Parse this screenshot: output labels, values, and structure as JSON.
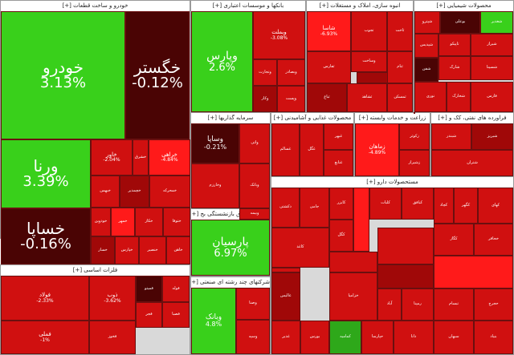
{
  "colors": {
    "bright_green": "#39d01b",
    "green": "#2ea81a",
    "dark_green": "#1e7a12",
    "bright_red": "#ff1a1a",
    "red": "#d01010",
    "dark_red": "#a00808",
    "maroon": "#4a0404",
    "neutral": "#7a1010"
  },
  "sectors": [
    {
      "id": "auto",
      "title": "خودرو و ساخت قطعات [+]"
    },
    {
      "id": "banks",
      "title": "بانکها و موسسات اعتباری [+]"
    },
    {
      "id": "telecom",
      "title": "انبوه سازی، املاک و مستغلات [+]"
    },
    {
      "id": "chem",
      "title": "محصولات شیمیایی [+]"
    },
    {
      "id": "invest",
      "title": "سرمایه گذاریها [+]"
    },
    {
      "id": "food",
      "title": "محصولات غذایی و آشامیدنی [+]"
    },
    {
      "id": "agri",
      "title": "زراعت و خدمات وابسته [+]"
    },
    {
      "id": "refinery",
      "title": "فراورده های نفتی، کک و [+]"
    },
    {
      "id": "multi",
      "title": "سیمه وصندوق بازنشستگی بج [+]"
    },
    {
      "id": "metal",
      "title": "فلزات اساسی [+]"
    },
    {
      "id": "holding",
      "title": "شرکتهای چند رشته ای صنعتی [+]"
    },
    {
      "id": "pharma",
      "title": "مستحصولات دارو [+]"
    }
  ],
  "tiles": [
    {
      "id": "khodro",
      "name": "خودرو",
      "change": "3.13%",
      "color": "bright_green",
      "size": "xl"
    },
    {
      "id": "khgostar",
      "name": "خگستر",
      "change": "-0.12%",
      "color": "maroon",
      "size": "xl"
    },
    {
      "id": "varna",
      "name": "ورنا",
      "change": "3.39%",
      "color": "bright_green",
      "size": "xl"
    },
    {
      "id": "khsapa",
      "name": "خساپا",
      "change": "-0.16%",
      "color": "maroon",
      "size": "xl"
    },
    {
      "id": "khavar",
      "name": "خاور",
      "change": "-2.04%",
      "color": "red",
      "size": "sm"
    },
    {
      "id": "kharakhs",
      "name": "خراهی",
      "change": "-4.84%",
      "color": "bright_red",
      "size": "sm"
    },
    {
      "id": "khabahman",
      "name": "خبهمن",
      "change": "",
      "color": "red",
      "size": "xs"
    },
    {
      "id": "khchamdir",
      "name": "خچمدیر",
      "change": "",
      "color": "dark_red",
      "size": "xs"
    },
    {
      "id": "khmohreka",
      "name": "خمحرکه",
      "change": "",
      "color": "red",
      "size": "xs"
    },
    {
      "id": "khodvin",
      "name": "خودوین",
      "change": "",
      "color": "red",
      "size": "xs"
    },
    {
      "id": "khmehr",
      "name": "خمهر",
      "change": "",
      "color": "bright_red",
      "size": "xs"
    },
    {
      "id": "khkhaz",
      "name": "خکاز",
      "change": "",
      "color": "red",
      "size": "xs"
    },
    {
      "id": "khtoos",
      "name": "ختوقا",
      "change": "",
      "color": "red",
      "size": "xs"
    },
    {
      "id": "khsaz",
      "name": "خساز",
      "change": "",
      "color": "dark_red",
      "size": "xs"
    },
    {
      "id": "khpars",
      "name": "خپارس",
      "change": "",
      "color": "red",
      "size": "xs"
    },
    {
      "id": "khnamak",
      "name": "خنصیر",
      "change": "",
      "color": "red",
      "size": "xs"
    },
    {
      "id": "khthan",
      "name": "خاهن",
      "change": "",
      "color": "red",
      "size": "xs"
    },
    {
      "id": "khshaz",
      "name": "خشرق",
      "change": "",
      "color": "red",
      "size": "xs"
    },
    {
      "id": "khlent",
      "name": "خلنت",
      "change": "",
      "color": "red",
      "size": "xs"
    },
    {
      "id": "khzar",
      "name": "خزر",
      "change": "",
      "color": "red",
      "size": "xs"
    },
    {
      "id": "khgilan",
      "name": "خکلتوم",
      "change": "",
      "color": "red",
      "size": "xs"
    },
    {
      "id": "khamid",
      "name": "خاذین",
      "change": "",
      "color": "dark_red",
      "size": "xs"
    },
    {
      "id": "vpars",
      "name": "وپارس",
      "change": "2.6%",
      "color": "bright_green",
      "size": "lg"
    },
    {
      "id": "vmellat",
      "name": "وبملت",
      "change": "-3.08%",
      "color": "red",
      "size": "sm"
    },
    {
      "id": "vtejarat",
      "name": "وتجارت",
      "change": "",
      "color": "red",
      "size": "xs"
    },
    {
      "id": "vbsader",
      "name": "وبصادر",
      "change": "",
      "color": "red",
      "size": "xs"
    },
    {
      "id": "vkar",
      "name": "وکار",
      "change": "",
      "color": "dark_red",
      "size": "xs"
    },
    {
      "id": "vpost",
      "name": "وپست",
      "change": "",
      "color": "red",
      "size": "xs"
    },
    {
      "id": "vsina",
      "name": "وسینا",
      "change": "",
      "color": "maroon",
      "size": "xs"
    },
    {
      "id": "vday",
      "name": "ودی",
      "change": "",
      "color": "red",
      "size": "xs"
    },
    {
      "id": "vbmeli",
      "name": "وملل",
      "change": "",
      "color": "red",
      "size": "xs"
    },
    {
      "id": "shasta",
      "name": "شاسا",
      "change": "-6.93%",
      "color": "bright_red",
      "size": "sm"
    },
    {
      "id": "vsakht",
      "name": "وساخت",
      "change": "",
      "color": "red",
      "size": "xs"
    },
    {
      "id": "tjoub",
      "name": "تجوب",
      "change": "",
      "color": "red",
      "size": "xs"
    },
    {
      "id": "takth",
      "name": "ثاخت",
      "change": "",
      "color": "red",
      "size": "xs"
    },
    {
      "id": "tfars",
      "name": "ثفارس",
      "change": "",
      "color": "red",
      "size": "xs"
    },
    {
      "id": "thnaz",
      "name": "ثنام",
      "change": "",
      "color": "red",
      "size": "xs"
    },
    {
      "id": "tbaj",
      "name": "ثباغ",
      "change": "",
      "color": "dark_red",
      "size": "xs"
    },
    {
      "id": "tshahed",
      "name": "ثشاهد",
      "change": "",
      "color": "red",
      "size": "xs"
    },
    {
      "id": "tmasken",
      "name": "ثمسکن",
      "change": "",
      "color": "red",
      "size": "xs"
    },
    {
      "id": "shpet",
      "name": "شپترو",
      "change": "",
      "color": "red",
      "size": "xs"
    },
    {
      "id": "shbandar",
      "name": "بوعلی",
      "change": "",
      "color": "maroon",
      "size": "xs"
    },
    {
      "id": "shgh",
      "name": "شغدیر",
      "change": "3.66%",
      "color": "bright_green",
      "size": "xs"
    },
    {
      "id": "shpdis",
      "name": "شپدیس",
      "change": "",
      "color": "red",
      "size": "xs"
    },
    {
      "id": "tapico",
      "name": "تاپیکو",
      "change": "",
      "color": "red",
      "size": "xs"
    },
    {
      "id": "shiraz",
      "name": "شیراز",
      "change": "",
      "color": "red",
      "size": "xs"
    },
    {
      "id": "shfan",
      "name": "شفن",
      "change": "",
      "color": "maroon",
      "size": "xs"
    },
    {
      "id": "khark",
      "name": "شارک",
      "change": "",
      "color": "red",
      "size": "xs"
    },
    {
      "id": "shsina",
      "name": "شسینا",
      "change": "",
      "color": "red",
      "size": "xs"
    },
    {
      "id": "nouri",
      "name": "نوری",
      "change": "",
      "color": "red",
      "size": "xs"
    },
    {
      "id": "shakhark",
      "name": "شخارک",
      "change": "",
      "color": "red",
      "size": "xs"
    },
    {
      "id": "fars",
      "name": "فارس",
      "change": "",
      "color": "red",
      "size": "xs"
    },
    {
      "id": "jam",
      "name": "جم",
      "change": "",
      "color": "red",
      "size": "xs"
    },
    {
      "id": "shesfa",
      "name": "شصفها",
      "change": "",
      "color": "red",
      "size": "xs"
    },
    {
      "id": "zagros",
      "name": "زاگرس",
      "change": "",
      "color": "red",
      "size": "xs"
    },
    {
      "id": "vsapa",
      "name": "وساپا",
      "change": "-0.21%",
      "color": "maroon",
      "size": "md"
    },
    {
      "id": "vati",
      "name": "واتی",
      "change": "",
      "color": "red",
      "size": "xs"
    },
    {
      "id": "vkharazm",
      "name": "وخارزم",
      "change": "",
      "color": "red",
      "size": "xs"
    },
    {
      "id": "vbank",
      "name": "وبانک",
      "change": "",
      "color": "red",
      "size": "xs"
    },
    {
      "id": "ghsalam",
      "name": "غسالم",
      "change": "",
      "color": "red",
      "size": "xs"
    },
    {
      "id": "ghgol",
      "name": "غگل",
      "change": "",
      "color": "red",
      "size": "xs"
    },
    {
      "id": "ghber",
      "name": "غبهر",
      "change": "",
      "color": "red",
      "size": "xs"
    },
    {
      "id": "ghnab",
      "name": "غنابع",
      "change": "",
      "color": "red",
      "size": "xs"
    },
    {
      "id": "zamahan",
      "name": "زماهان",
      "change": "-4.89%",
      "color": "bright_red",
      "size": "sm"
    },
    {
      "id": "zkosar",
      "name": "زکوثر",
      "change": "",
      "color": "red",
      "size": "xs"
    },
    {
      "id": "zshiraz",
      "name": "زشیراز",
      "change": "",
      "color": "red",
      "size": "xs"
    },
    {
      "id": "shabandar",
      "name": "شبندر",
      "change": "-2.25%",
      "color": "red",
      "size": "xs"
    },
    {
      "id": "shbriz",
      "name": "شبریز",
      "change": "",
      "color": "dark_red",
      "size": "xs"
    },
    {
      "id": "shtran",
      "name": "شتران",
      "change": "-1.03%",
      "color": "red",
      "size": "xs"
    },
    {
      "id": "parsian",
      "name": "پارسیان",
      "change": "6.97%",
      "color": "bright_green",
      "size": "lg"
    },
    {
      "id": "vbimeh",
      "name": "وبیمه",
      "change": "",
      "color": "red",
      "size": "xs"
    },
    {
      "id": "bkhavar",
      "name": "بخاور",
      "change": "",
      "color": "red",
      "size": "xs"
    },
    {
      "id": "bkarkar",
      "name": "برکت",
      "change": "",
      "color": "red",
      "size": "xs"
    },
    {
      "id": "foulad",
      "name": "فولاد",
      "change": "-2.33%",
      "color": "red",
      "size": "sm"
    },
    {
      "id": "zob",
      "name": "ذوب",
      "change": "-3.62%",
      "color": "red",
      "size": "sm"
    },
    {
      "id": "fameli",
      "name": "فملی",
      "change": "-1%",
      "color": "red",
      "size": "sm"
    },
    {
      "id": "fmeino",
      "name": "فمیتو",
      "change": "",
      "color": "maroon",
      "size": "xs"
    },
    {
      "id": "fouleh",
      "name": "فوله",
      "change": "",
      "color": "red",
      "size": "xs"
    },
    {
      "id": "fjar",
      "name": "فجر",
      "change": "",
      "color": "red",
      "size": "xs"
    },
    {
      "id": "fasa",
      "name": "فصبا",
      "change": "",
      "color": "red",
      "size": "xs"
    },
    {
      "id": "fkhouz",
      "name": "فخوز",
      "change": "",
      "color": "red",
      "size": "xs"
    },
    {
      "id": "vbank2",
      "name": "وبانک",
      "change": "4.8%",
      "color": "bright_green",
      "size": "md"
    },
    {
      "id": "vsamen",
      "name": "وصنا",
      "change": "-2.6%",
      "color": "red",
      "size": "xs"
    },
    {
      "id": "vsepeh",
      "name": "وسپه",
      "change": "",
      "color": "red",
      "size": "xs"
    },
    {
      "id": "kaizar",
      "name": "کایزر",
      "change": "",
      "color": "red",
      "size": "xs"
    },
    {
      "id": "kgol",
      "name": "کگل",
      "change": "",
      "color": "red",
      "size": "xs"
    },
    {
      "id": "kchad",
      "name": "کچاد",
      "change": "",
      "color": "red",
      "size": "xs"
    },
    {
      "id": "kghol",
      "name": "کگهر",
      "change": "",
      "color": "red",
      "size": "xs"
    },
    {
      "id": "kiran",
      "name": "کهای",
      "change": "",
      "color": "red",
      "size": "xs"
    },
    {
      "id": "kalbaf",
      "name": "کلبات",
      "change": "",
      "color": "red",
      "size": "xs"
    },
    {
      "id": "kabin",
      "name": "کبافق",
      "change": "",
      "color": "red",
      "size": "xs"
    },
    {
      "id": "kegal",
      "name": "کگاز",
      "change": "",
      "color": "red",
      "size": "xs"
    },
    {
      "id": "khafar",
      "name": "خحافر",
      "change": "",
      "color": "red",
      "size": "xs"
    },
    {
      "id": "dkeshti",
      "name": "دکشتی",
      "change": "",
      "color": "red",
      "size": "xs"
    },
    {
      "id": "jamat",
      "name": "جامی",
      "change": "",
      "color": "red",
      "size": "xs"
    },
    {
      "id": "kaghaz",
      "name": "کاغذ",
      "change": "",
      "color": "red",
      "size": "xs"
    },
    {
      "id": "kamar",
      "name": "کمامیه",
      "change": "1.15%",
      "color": "green",
      "size": "xs"
    },
    {
      "id": "abad",
      "name": "آباد",
      "change": "",
      "color": "red",
      "size": "xs"
    },
    {
      "id": "rabin",
      "name": "رمپنا",
      "change": "",
      "color": "red",
      "size": "xs"
    },
    {
      "id": "tabsam",
      "name": "تبسام",
      "change": "",
      "color": "red",
      "size": "xs"
    },
    {
      "id": "hjrj",
      "name": "حجرج",
      "change": "",
      "color": "red",
      "size": "xs"
    },
    {
      "id": "hparsi",
      "name": "حپارسا",
      "change": "",
      "color": "red",
      "size": "xs"
    },
    {
      "id": "bourse",
      "name": "بورس",
      "change": "",
      "color": "red",
      "size": "xs"
    },
    {
      "id": "atali",
      "name": "عالیس",
      "change": "",
      "color": "dark_red",
      "size": "xs"
    },
    {
      "id": "dana",
      "name": "دانا",
      "change": "",
      "color": "red",
      "size": "xs"
    },
    {
      "id": "sebahan",
      "name": "سبهان",
      "change": "",
      "color": "red",
      "size": "xs"
    },
    {
      "id": "bnbid",
      "name": "بنیاد",
      "change": "",
      "color": "red",
      "size": "xs"
    },
    {
      "id": "ghadir",
      "name": "غدیر",
      "change": "",
      "color": "red",
      "size": "xs"
    },
    {
      "id": "khzam",
      "name": "خزامیا",
      "change": "",
      "color": "red",
      "size": "xs"
    }
  ]
}
